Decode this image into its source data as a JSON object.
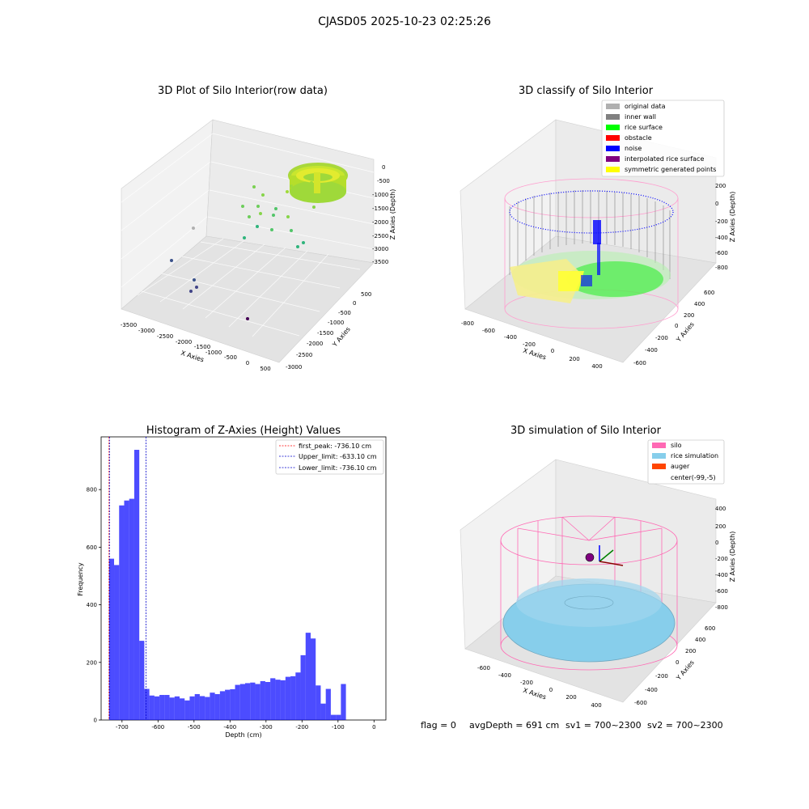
{
  "suptitle": "CJASD05 2025-10-23 02:25:26",
  "footer": {
    "flag": "flag = 0",
    "avg": "avgDepth = 691 cm",
    "sv1": "sv1 = 700~2300",
    "sv2": "sv2 = 700~2300"
  },
  "chart_data": [
    {
      "type": "scatter",
      "title": "3D Plot of Silo Interior(row data)",
      "xlabel": "X Axies",
      "ylabel": "Y Axies",
      "zlabel": "Z Axies (Depth)",
      "xticks": [
        "-3500",
        "-3000",
        "-2500",
        "-2000",
        "-1500",
        "-1000",
        "-500",
        "0",
        "500"
      ],
      "yticks": [
        "500",
        "0",
        "-500",
        "-1000",
        "-1500",
        "-2000",
        "-2500",
        "-3000"
      ],
      "zticks": [
        "0",
        "-500",
        "-1000",
        "-1500",
        "-2000",
        "-2500",
        "-3000",
        "-3500"
      ]
    },
    {
      "type": "scatter",
      "title": "3D classify of Silo Interior",
      "xlabel": "X Axies",
      "ylabel": "Y Axies",
      "zlabel": "Z Axies (Depth)",
      "xticks": [
        "-800",
        "-600",
        "-400",
        "-200",
        "0",
        "200",
        "400"
      ],
      "yticks": [
        "600",
        "400",
        "200",
        "0",
        "-200",
        "-400",
        "-600"
      ],
      "zticks": [
        "200",
        "0",
        "-200",
        "-400",
        "-600",
        "-800"
      ],
      "legend_position": "top-right",
      "legend": [
        {
          "label": "original data",
          "color": "#b0b0b0"
        },
        {
          "label": "inner wall",
          "color": "#808080"
        },
        {
          "label": "rice surface",
          "color": "#00ff00"
        },
        {
          "label": "obstacle",
          "color": "#ff0000"
        },
        {
          "label": "noise",
          "color": "#0000ff"
        },
        {
          "label": "interpolated rice surface",
          "color": "#800080"
        },
        {
          "label": "symmetric generated points",
          "color": "#ffff00"
        }
      ]
    },
    {
      "type": "bar",
      "title": "Histogram of Z-Axies (Height) Values",
      "xlabel": "Depth (cm)",
      "ylabel": "Frequency",
      "xlim": [
        -758,
        33
      ],
      "ylim": [
        0,
        983
      ],
      "xticks": [
        -700,
        -600,
        -500,
        -400,
        -300,
        -200,
        -100,
        0
      ],
      "yticks": [
        0,
        200,
        400,
        600,
        800
      ],
      "bar_color": "#0000ff",
      "bins": [
        {
          "x0": -736.1,
          "x1": -722,
          "count": 560
        },
        {
          "x0": -722,
          "x1": -708,
          "count": 538
        },
        {
          "x0": -708,
          "x1": -694,
          "count": 745
        },
        {
          "x0": -694,
          "x1": -680,
          "count": 762
        },
        {
          "x0": -680,
          "x1": -666,
          "count": 768
        },
        {
          "x0": -666,
          "x1": -652,
          "count": 938
        },
        {
          "x0": -652,
          "x1": -638,
          "count": 275
        },
        {
          "x0": -638,
          "x1": -624,
          "count": 108
        },
        {
          "x0": -624,
          "x1": -610,
          "count": 85
        },
        {
          "x0": -610,
          "x1": -596,
          "count": 82
        },
        {
          "x0": -596,
          "x1": -582,
          "count": 87
        },
        {
          "x0": -582,
          "x1": -568,
          "count": 87
        },
        {
          "x0": -568,
          "x1": -554,
          "count": 78
        },
        {
          "x0": -554,
          "x1": -540,
          "count": 82
        },
        {
          "x0": -540,
          "x1": -526,
          "count": 75
        },
        {
          "x0": -526,
          "x1": -512,
          "count": 68
        },
        {
          "x0": -512,
          "x1": -498,
          "count": 82
        },
        {
          "x0": -498,
          "x1": -484,
          "count": 90
        },
        {
          "x0": -484,
          "x1": -470,
          "count": 83
        },
        {
          "x0": -470,
          "x1": -456,
          "count": 80
        },
        {
          "x0": -456,
          "x1": -442,
          "count": 95
        },
        {
          "x0": -442,
          "x1": -428,
          "count": 90
        },
        {
          "x0": -428,
          "x1": -414,
          "count": 100
        },
        {
          "x0": -414,
          "x1": -400,
          "count": 105
        },
        {
          "x0": -400,
          "x1": -386,
          "count": 107
        },
        {
          "x0": -386,
          "x1": -372,
          "count": 122
        },
        {
          "x0": -372,
          "x1": -358,
          "count": 125
        },
        {
          "x0": -358,
          "x1": -344,
          "count": 128
        },
        {
          "x0": -344,
          "x1": -330,
          "count": 130
        },
        {
          "x0": -330,
          "x1": -316,
          "count": 125
        },
        {
          "x0": -316,
          "x1": -302,
          "count": 135
        },
        {
          "x0": -302,
          "x1": -288,
          "count": 132
        },
        {
          "x0": -288,
          "x1": -274,
          "count": 145
        },
        {
          "x0": -274,
          "x1": -260,
          "count": 140
        },
        {
          "x0": -260,
          "x1": -246,
          "count": 138
        },
        {
          "x0": -246,
          "x1": -232,
          "count": 150
        },
        {
          "x0": -232,
          "x1": -218,
          "count": 152
        },
        {
          "x0": -218,
          "x1": -204,
          "count": 165
        },
        {
          "x0": -204,
          "x1": -190,
          "count": 225
        },
        {
          "x0": -190,
          "x1": -176,
          "count": 303
        },
        {
          "x0": -176,
          "x1": -162,
          "count": 283
        },
        {
          "x0": -162,
          "x1": -148,
          "count": 120
        },
        {
          "x0": -148,
          "x1": -134,
          "count": 57
        },
        {
          "x0": -134,
          "x1": -120,
          "count": 108
        },
        {
          "x0": -120,
          "x1": -106,
          "count": 18
        },
        {
          "x0": -106,
          "x1": -92,
          "count": 18
        },
        {
          "x0": -92,
          "x1": -78,
          "count": 125
        }
      ],
      "vlines": [
        {
          "label": "first_peak: -736.10 cm",
          "x": -736.1,
          "color": "#ff0000"
        },
        {
          "label": "Upper_limit: -633.10 cm",
          "x": -633.1,
          "color": "#0000cc"
        },
        {
          "label": "Lower_limit: -736.10 cm",
          "x": -736.1,
          "color": "#0000cc"
        }
      ],
      "legend_position": "top-right"
    },
    {
      "type": "area",
      "title": "3D simulation of Silo Interior",
      "xlabel": "X Axies",
      "ylabel": "Y Axies",
      "zlabel": "Z Axies (Depth)",
      "xticks": [
        "-600",
        "-400",
        "-200",
        "0",
        "200",
        "400"
      ],
      "yticks": [
        "600",
        "400",
        "200",
        "0",
        "-200",
        "-400",
        "-600"
      ],
      "zticks": [
        "400",
        "200",
        "0",
        "-200",
        "-400",
        "-600",
        "-800"
      ],
      "legend_position": "top-right",
      "legend": [
        {
          "label": "silo",
          "color": "#ff69b4"
        },
        {
          "label": "rice simulation",
          "color": "#87ceeb"
        },
        {
          "label": "auger",
          "color": "#ff4500"
        },
        {
          "label": "center(-99,-5)",
          "color": ""
        }
      ]
    }
  ]
}
